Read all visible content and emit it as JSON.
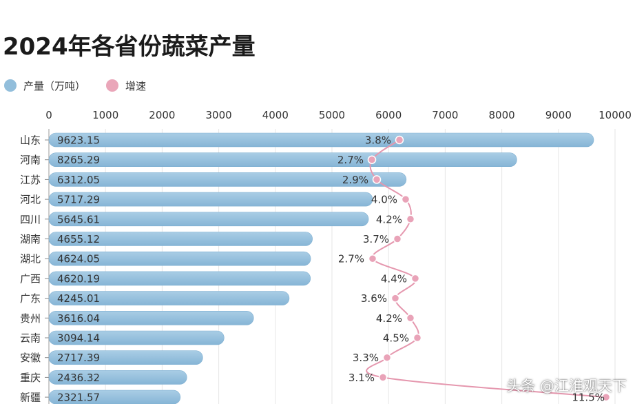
{
  "title": "2024年各省份蔬菜产量",
  "legend": [
    {
      "label": "产量（万吨）",
      "color": "#92bedb"
    },
    {
      "label": "增速",
      "color": "#eaa6b9"
    }
  ],
  "watermark": "头条 @江淮观天下",
  "chart_data": {
    "type": "bar",
    "orientation": "horizontal",
    "title": "2024年各省份蔬菜产量",
    "categories": [
      "山东",
      "河南",
      "江苏",
      "河北",
      "四川",
      "湖南",
      "湖北",
      "广西",
      "广东",
      "贵州",
      "云南",
      "安徽",
      "重庆",
      "新疆"
    ],
    "series": [
      {
        "name": "产量（万吨）",
        "type": "bar",
        "color": "#92bedb",
        "values": [
          9623.15,
          8265.29,
          6312.05,
          5717.29,
          5645.61,
          4655.12,
          4624.05,
          4620.19,
          4245.01,
          3616.04,
          3094.14,
          2717.39,
          2436.32,
          2321.57
        ],
        "labels": [
          "9623.15",
          "8265.29",
          "6312.05",
          "5717.29",
          "5645.61",
          "4655.12",
          "4624.05",
          "4620.19",
          "4245.01",
          "3616.04",
          "3094.14",
          "2717.39",
          "2436.32",
          "2321.57"
        ]
      },
      {
        "name": "增速",
        "type": "line",
        "color": "#eaa6b9",
        "values": [
          3.8,
          2.7,
          2.9,
          4.0,
          4.2,
          3.7,
          2.7,
          4.4,
          3.6,
          4.2,
          4.5,
          3.3,
          3.1,
          11.5
        ],
        "labels": [
          "3.8%",
          "2.7%",
          "2.9%",
          "4.0%",
          "4.2%",
          "3.7%",
          "2.7%",
          "4.4%",
          "3.6%",
          "4.2%",
          "4.5%",
          "3.3%",
          "3.1%",
          "11.5%"
        ]
      }
    ],
    "x_ticks": [
      0,
      1000,
      2000,
      3000,
      4000,
      5000,
      6000,
      7000,
      8000,
      9000,
      10000
    ],
    "xlim": [
      0,
      10000
    ],
    "grid": true,
    "legend_position": "top-left"
  }
}
